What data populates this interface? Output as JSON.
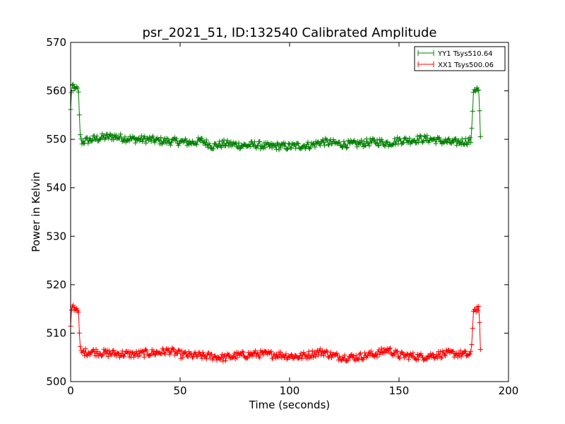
{
  "chart_data": {
    "type": "line",
    "title": "psr_2021_51, ID:132540 Calibrated Amplitude",
    "xlabel": "Time (seconds)",
    "ylabel": "Power in Kelvin",
    "xlim": [
      0,
      200
    ],
    "ylim": [
      500,
      570
    ],
    "xticks": [
      "0",
      "50",
      "100",
      "150",
      "200"
    ],
    "yticks": [
      "500",
      "510",
      "520",
      "530",
      "540",
      "550",
      "560",
      "570"
    ],
    "legend_position": "top-right",
    "grid": false,
    "series": [
      {
        "name": "YY1 Tsys510.64",
        "color": "#008000",
        "marker": "+",
        "points": [
          [
            0,
            556
          ],
          [
            0.5,
            560.8
          ],
          [
            1,
            561.2
          ],
          [
            1.5,
            560.3
          ],
          [
            2,
            560.5
          ],
          [
            2.5,
            560.9
          ],
          [
            3,
            560.2
          ],
          [
            3.5,
            560.6
          ],
          [
            4,
            554.8
          ],
          [
            4.5,
            550.2
          ],
          [
            5,
            549.5
          ],
          [
            10,
            550.0
          ],
          [
            15,
            550.4
          ],
          [
            20,
            550.6
          ],
          [
            25,
            550.2
          ],
          [
            30,
            550.0
          ],
          [
            35,
            550.0
          ],
          [
            40,
            549.7
          ],
          [
            45,
            549.6
          ],
          [
            50,
            549.5
          ],
          [
            55,
            549.3
          ],
          [
            60,
            549.7
          ],
          [
            65,
            548.6
          ],
          [
            70,
            549.1
          ],
          [
            75,
            548.9
          ],
          [
            80,
            548.7
          ],
          [
            85,
            548.9
          ],
          [
            90,
            548.5
          ],
          [
            95,
            548.6
          ],
          [
            100,
            548.5
          ],
          [
            105,
            548.7
          ],
          [
            110,
            548.8
          ],
          [
            115,
            549.5
          ],
          [
            120,
            549.2
          ],
          [
            125,
            549.0
          ],
          [
            130,
            549.0
          ],
          [
            135,
            549.3
          ],
          [
            140,
            549.5
          ],
          [
            145,
            549.2
          ],
          [
            150,
            549.8
          ],
          [
            155,
            549.8
          ],
          [
            160,
            550.1
          ],
          [
            165,
            550.0
          ],
          [
            170,
            549.6
          ],
          [
            175,
            549.3
          ],
          [
            180,
            549.6
          ],
          [
            183,
            549.8
          ],
          [
            184,
            560
          ],
          [
            184.5,
            560.4
          ],
          [
            185,
            560.1
          ],
          [
            185.5,
            560.5
          ],
          [
            186,
            560.2
          ],
          [
            186.5,
            559.8
          ],
          [
            187,
            553
          ],
          [
            187.3,
            549
          ]
        ]
      },
      {
        "name": "XX1 Tsys500.06",
        "color": "#ff0000",
        "marker": "+",
        "points": [
          [
            0,
            511
          ],
          [
            0.5,
            515.4
          ],
          [
            1,
            515.8
          ],
          [
            1.5,
            515.1
          ],
          [
            2,
            515.2
          ],
          [
            2.5,
            514.9
          ],
          [
            3,
            515.3
          ],
          [
            3.5,
            514.8
          ],
          [
            4,
            510.0
          ],
          [
            4.5,
            506.2
          ],
          [
            5,
            506.0
          ],
          [
            10,
            506.2
          ],
          [
            15,
            505.9
          ],
          [
            20,
            505.8
          ],
          [
            25,
            505.7
          ],
          [
            30,
            505.6
          ],
          [
            35,
            505.9
          ],
          [
            40,
            506.0
          ],
          [
            45,
            506.4
          ],
          [
            50,
            505.6
          ],
          [
            55,
            505.4
          ],
          [
            60,
            505.3
          ],
          [
            65,
            505.2
          ],
          [
            70,
            504.9
          ],
          [
            75,
            505.3
          ],
          [
            80,
            505.5
          ],
          [
            85,
            505.7
          ],
          [
            90,
            505.6
          ],
          [
            95,
            505.6
          ],
          [
            100,
            505.3
          ],
          [
            105,
            505.2
          ],
          [
            110,
            505.7
          ],
          [
            115,
            506.2
          ],
          [
            120,
            505.3
          ],
          [
            125,
            505.1
          ],
          [
            130,
            505.0
          ],
          [
            135,
            505.4
          ],
          [
            140,
            505.8
          ],
          [
            145,
            506.6
          ],
          [
            150,
            505.4
          ],
          [
            155,
            505.3
          ],
          [
            160,
            505.1
          ],
          [
            165,
            505.4
          ],
          [
            170,
            505.7
          ],
          [
            175,
            505.8
          ],
          [
            180,
            505.6
          ],
          [
            183,
            505.5
          ],
          [
            184,
            514.8
          ],
          [
            184.5,
            515.0
          ],
          [
            185,
            514.6
          ],
          [
            185.5,
            515.2
          ],
          [
            186,
            514.9
          ],
          [
            186.5,
            515.1
          ],
          [
            187,
            509.5
          ],
          [
            187.3,
            505
          ]
        ]
      }
    ]
  }
}
